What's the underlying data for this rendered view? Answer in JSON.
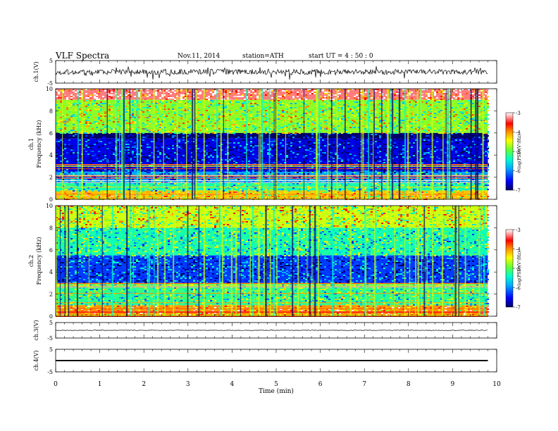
{
  "header": {
    "title": "VLF  Spectra",
    "date": "Nov.11, 2014",
    "station": "station=ATH",
    "start": "start  UT  =   4  : 50 : 0"
  },
  "chart_data": [
    {
      "type": "line",
      "panel": "ch1-waveform",
      "ylabel": "ch.1(V)",
      "ylim": [
        -5,
        5
      ],
      "yticks": [
        "5",
        "-5"
      ],
      "description_values": {
        "baseline": 0,
        "approx_amplitude": 1.2,
        "spike_max": 2.5,
        "spike_min": -3.5
      },
      "time_range_min": [
        0,
        9.8
      ],
      "color": "#000000"
    },
    {
      "type": "heatmap",
      "panel": "ch1-spectrogram",
      "ylabel": "ch.1",
      "ylabel2": "Frequency  (kHz)",
      "xlim": [
        0,
        10
      ],
      "ylim": [
        0,
        10
      ],
      "yticks": [
        "0",
        "2",
        "4",
        "6",
        "8",
        "10"
      ],
      "data_extent_min": [
        0,
        9.8
      ],
      "bands_log_psd": [
        {
          "f_range_khz": [
            9.0,
            10.0
          ],
          "log_psd": -3.3
        },
        {
          "f_range_khz": [
            6.0,
            9.0
          ],
          "log_psd": -4.8
        },
        {
          "f_range_khz": [
            5.5,
            6.0
          ],
          "log_psd": -7.0
        },
        {
          "f_range_khz": [
            2.5,
            5.5
          ],
          "log_psd": -6.6
        },
        {
          "f_range_khz": [
            1.5,
            2.5
          ],
          "log_psd": -5.9
        },
        {
          "f_range_khz": [
            0.8,
            1.5
          ],
          "log_psd": -5.3
        },
        {
          "f_range_khz": [
            0.0,
            0.8
          ],
          "log_psd": -4.2
        }
      ],
      "colorbar": {
        "label": "log(PSD)(V²/Hz)",
        "range": [
          -7,
          -3
        ],
        "ticks": [
          "-3",
          "-4",
          "-5",
          "-6",
          "-7"
        ]
      }
    },
    {
      "type": "heatmap",
      "panel": "ch2-spectrogram",
      "ylabel": "ch.2",
      "ylabel2": "Frequency  (kHz)",
      "xlim": [
        0,
        10
      ],
      "ylim": [
        0,
        10
      ],
      "yticks": [
        "0",
        "2",
        "4",
        "6",
        "8",
        "10"
      ],
      "data_extent_min": [
        0,
        9.8
      ],
      "bands_log_psd": [
        {
          "f_range_khz": [
            8.0,
            10.0
          ],
          "log_psd": -4.6
        },
        {
          "f_range_khz": [
            5.5,
            8.0
          ],
          "log_psd": -5.3
        },
        {
          "f_range_khz": [
            3.0,
            5.5
          ],
          "log_psd": -6.3
        },
        {
          "f_range_khz": [
            1.0,
            3.0
          ],
          "log_psd": -5.2
        },
        {
          "f_range_khz": [
            0.0,
            1.0
          ],
          "log_psd": -4.0
        }
      ],
      "colorbar": {
        "label": "log(PSD)(V²/Hz)",
        "range": [
          -7,
          -3
        ],
        "ticks": [
          "-3",
          "-4",
          "-5",
          "-6",
          "-7"
        ]
      }
    },
    {
      "type": "line",
      "panel": "ch3-waveform",
      "ylabel": "ch.3(V)",
      "ylim": [
        -5,
        5
      ],
      "yticks": [
        "5",
        "-5"
      ],
      "description_values": {
        "baseline": 0,
        "approx_amplitude": 0.2
      },
      "time_range_min": [
        0,
        9.8
      ],
      "color": "#000000"
    },
    {
      "type": "line",
      "panel": "ch4-waveform",
      "ylabel": "ch.4(V)",
      "ylim": [
        -5,
        5
      ],
      "yticks": [
        "5",
        "-5"
      ],
      "description_values": {
        "baseline": 0,
        "approx_amplitude": 0.3
      },
      "time_range_min": [
        0,
        9.8
      ],
      "color": "#000000"
    }
  ],
  "xaxis": {
    "label": "Time  (min)",
    "ticks": [
      "0",
      "1",
      "2",
      "3",
      "4",
      "5",
      "6",
      "7",
      "8",
      "9",
      "10"
    ],
    "range": [
      0,
      10
    ]
  },
  "colors": {
    "scale": [
      "#000088",
      "#0000ff",
      "#00aaff",
      "#00ffcc",
      "#66ff33",
      "#ffff00",
      "#ff8800",
      "#ff0000",
      "#ff9999",
      "#ffffff"
    ]
  }
}
